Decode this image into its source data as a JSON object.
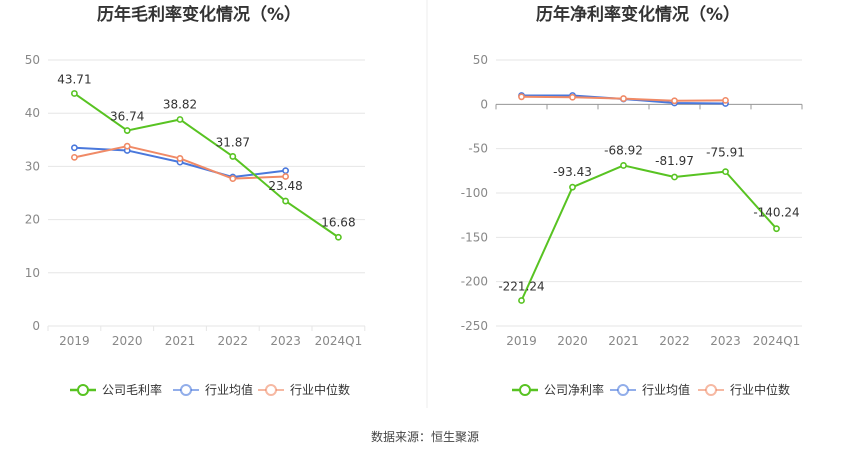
{
  "source": "数据来源：恒生聚源",
  "colors": {
    "company": "#58c322",
    "industry_avg": "#4a78dc",
    "industry_median": "#f08a66",
    "grid": "#e6e6e6",
    "axis_text": "#888888",
    "title_text": "#333333",
    "divider": "#eeeeee"
  },
  "chart_data": [
    {
      "type": "line",
      "title": "历年毛利率变化情况（%）",
      "categories": [
        "2019",
        "2020",
        "2021",
        "2022",
        "2023",
        "2024Q1"
      ],
      "ylim": [
        0,
        50
      ],
      "yticks": [
        0,
        10,
        20,
        30,
        40,
        50
      ],
      "grid": true,
      "legend_position": "bottom",
      "series": [
        {
          "name": "公司毛利率",
          "key": "company",
          "values": [
            43.71,
            36.74,
            38.82,
            31.87,
            23.48,
            16.68
          ],
          "labels": [
            "43.71",
            "36.74",
            "38.82",
            "31.87",
            "23.48",
            "16.68"
          ]
        },
        {
          "name": "行业均值",
          "key": "industry_avg",
          "values": [
            33.5,
            33.0,
            30.8,
            28.0,
            29.2,
            null
          ]
        },
        {
          "name": "行业中位数",
          "key": "industry_median",
          "values": [
            31.7,
            33.8,
            31.5,
            27.7,
            28.1,
            null
          ]
        }
      ]
    },
    {
      "type": "line",
      "title": "历年净利率变化情况（%）",
      "categories": [
        "2019",
        "2020",
        "2021",
        "2022",
        "2023",
        "2024Q1"
      ],
      "ylim": [
        -250,
        50
      ],
      "yticks": [
        -250,
        -200,
        -150,
        -100,
        -50,
        0,
        50
      ],
      "grid": true,
      "legend_position": "bottom",
      "series": [
        {
          "name": "公司净利率",
          "key": "company",
          "values": [
            -221.24,
            -93.43,
            -68.92,
            -81.97,
            -75.91,
            -140.24
          ],
          "labels": [
            "-221.24",
            "-93.43",
            "-68.92",
            "-81.97",
            "-75.91",
            "-140.24"
          ]
        },
        {
          "name": "行业均值",
          "key": "industry_avg",
          "values": [
            10.0,
            10.0,
            6.0,
            1.5,
            1.0,
            null
          ]
        },
        {
          "name": "行业中位数",
          "key": "industry_median",
          "values": [
            8.5,
            8.0,
            6.5,
            4.0,
            4.5,
            null
          ]
        }
      ]
    }
  ]
}
